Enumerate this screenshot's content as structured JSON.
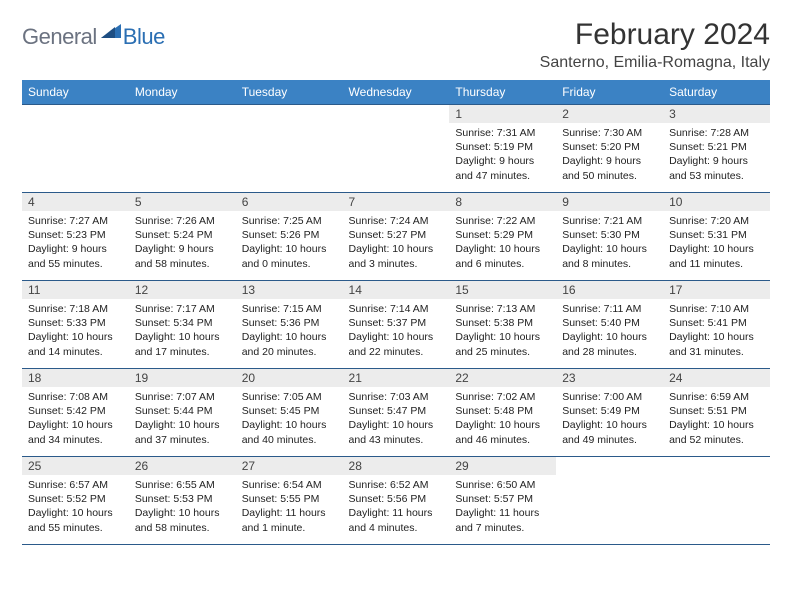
{
  "logo": {
    "general": "General",
    "blue": "Blue"
  },
  "title": "February 2024",
  "location": "Santerno, Emilia-Romagna, Italy",
  "colors": {
    "header_bg": "#3b82c4",
    "header_text": "#ffffff",
    "daynum_bg": "#ececec",
    "border": "#2b5a8a",
    "logo_gray": "#6b7280",
    "logo_blue": "#2b6fb3"
  },
  "weekdays": [
    "Sunday",
    "Monday",
    "Tuesday",
    "Wednesday",
    "Thursday",
    "Friday",
    "Saturday"
  ],
  "weeks": [
    [
      null,
      null,
      null,
      null,
      {
        "n": "1",
        "sunrise": "Sunrise: 7:31 AM",
        "sunset": "Sunset: 5:19 PM",
        "daylight": "Daylight: 9 hours and 47 minutes."
      },
      {
        "n": "2",
        "sunrise": "Sunrise: 7:30 AM",
        "sunset": "Sunset: 5:20 PM",
        "daylight": "Daylight: 9 hours and 50 minutes."
      },
      {
        "n": "3",
        "sunrise": "Sunrise: 7:28 AM",
        "sunset": "Sunset: 5:21 PM",
        "daylight": "Daylight: 9 hours and 53 minutes."
      }
    ],
    [
      {
        "n": "4",
        "sunrise": "Sunrise: 7:27 AM",
        "sunset": "Sunset: 5:23 PM",
        "daylight": "Daylight: 9 hours and 55 minutes."
      },
      {
        "n": "5",
        "sunrise": "Sunrise: 7:26 AM",
        "sunset": "Sunset: 5:24 PM",
        "daylight": "Daylight: 9 hours and 58 minutes."
      },
      {
        "n": "6",
        "sunrise": "Sunrise: 7:25 AM",
        "sunset": "Sunset: 5:26 PM",
        "daylight": "Daylight: 10 hours and 0 minutes."
      },
      {
        "n": "7",
        "sunrise": "Sunrise: 7:24 AM",
        "sunset": "Sunset: 5:27 PM",
        "daylight": "Daylight: 10 hours and 3 minutes."
      },
      {
        "n": "8",
        "sunrise": "Sunrise: 7:22 AM",
        "sunset": "Sunset: 5:29 PM",
        "daylight": "Daylight: 10 hours and 6 minutes."
      },
      {
        "n": "9",
        "sunrise": "Sunrise: 7:21 AM",
        "sunset": "Sunset: 5:30 PM",
        "daylight": "Daylight: 10 hours and 8 minutes."
      },
      {
        "n": "10",
        "sunrise": "Sunrise: 7:20 AM",
        "sunset": "Sunset: 5:31 PM",
        "daylight": "Daylight: 10 hours and 11 minutes."
      }
    ],
    [
      {
        "n": "11",
        "sunrise": "Sunrise: 7:18 AM",
        "sunset": "Sunset: 5:33 PM",
        "daylight": "Daylight: 10 hours and 14 minutes."
      },
      {
        "n": "12",
        "sunrise": "Sunrise: 7:17 AM",
        "sunset": "Sunset: 5:34 PM",
        "daylight": "Daylight: 10 hours and 17 minutes."
      },
      {
        "n": "13",
        "sunrise": "Sunrise: 7:15 AM",
        "sunset": "Sunset: 5:36 PM",
        "daylight": "Daylight: 10 hours and 20 minutes."
      },
      {
        "n": "14",
        "sunrise": "Sunrise: 7:14 AM",
        "sunset": "Sunset: 5:37 PM",
        "daylight": "Daylight: 10 hours and 22 minutes."
      },
      {
        "n": "15",
        "sunrise": "Sunrise: 7:13 AM",
        "sunset": "Sunset: 5:38 PM",
        "daylight": "Daylight: 10 hours and 25 minutes."
      },
      {
        "n": "16",
        "sunrise": "Sunrise: 7:11 AM",
        "sunset": "Sunset: 5:40 PM",
        "daylight": "Daylight: 10 hours and 28 minutes."
      },
      {
        "n": "17",
        "sunrise": "Sunrise: 7:10 AM",
        "sunset": "Sunset: 5:41 PM",
        "daylight": "Daylight: 10 hours and 31 minutes."
      }
    ],
    [
      {
        "n": "18",
        "sunrise": "Sunrise: 7:08 AM",
        "sunset": "Sunset: 5:42 PM",
        "daylight": "Daylight: 10 hours and 34 minutes."
      },
      {
        "n": "19",
        "sunrise": "Sunrise: 7:07 AM",
        "sunset": "Sunset: 5:44 PM",
        "daylight": "Daylight: 10 hours and 37 minutes."
      },
      {
        "n": "20",
        "sunrise": "Sunrise: 7:05 AM",
        "sunset": "Sunset: 5:45 PM",
        "daylight": "Daylight: 10 hours and 40 minutes."
      },
      {
        "n": "21",
        "sunrise": "Sunrise: 7:03 AM",
        "sunset": "Sunset: 5:47 PM",
        "daylight": "Daylight: 10 hours and 43 minutes."
      },
      {
        "n": "22",
        "sunrise": "Sunrise: 7:02 AM",
        "sunset": "Sunset: 5:48 PM",
        "daylight": "Daylight: 10 hours and 46 minutes."
      },
      {
        "n": "23",
        "sunrise": "Sunrise: 7:00 AM",
        "sunset": "Sunset: 5:49 PM",
        "daylight": "Daylight: 10 hours and 49 minutes."
      },
      {
        "n": "24",
        "sunrise": "Sunrise: 6:59 AM",
        "sunset": "Sunset: 5:51 PM",
        "daylight": "Daylight: 10 hours and 52 minutes."
      }
    ],
    [
      {
        "n": "25",
        "sunrise": "Sunrise: 6:57 AM",
        "sunset": "Sunset: 5:52 PM",
        "daylight": "Daylight: 10 hours and 55 minutes."
      },
      {
        "n": "26",
        "sunrise": "Sunrise: 6:55 AM",
        "sunset": "Sunset: 5:53 PM",
        "daylight": "Daylight: 10 hours and 58 minutes."
      },
      {
        "n": "27",
        "sunrise": "Sunrise: 6:54 AM",
        "sunset": "Sunset: 5:55 PM",
        "daylight": "Daylight: 11 hours and 1 minute."
      },
      {
        "n": "28",
        "sunrise": "Sunrise: 6:52 AM",
        "sunset": "Sunset: 5:56 PM",
        "daylight": "Daylight: 11 hours and 4 minutes."
      },
      {
        "n": "29",
        "sunrise": "Sunrise: 6:50 AM",
        "sunset": "Sunset: 5:57 PM",
        "daylight": "Daylight: 11 hours and 7 minutes."
      },
      null,
      null
    ]
  ]
}
